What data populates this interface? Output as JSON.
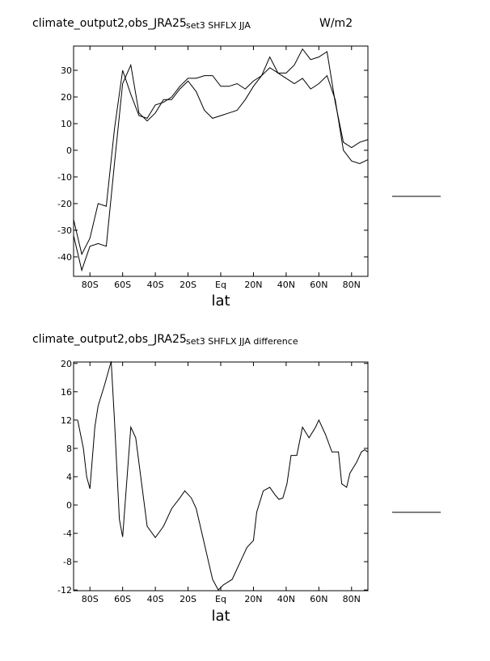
{
  "chart_data": [
    {
      "type": "line",
      "title": "climate_output2,obs_JRA25",
      "subtitle": "set3 SHFLX JJA",
      "units": "W/m2",
      "xlabel": "lat",
      "x": [
        -90,
        -85,
        -80,
        -75,
        -70,
        -65,
        -60,
        -55,
        -50,
        -45,
        -40,
        -35,
        -30,
        -25,
        -20,
        -15,
        -10,
        -5,
        0,
        5,
        10,
        15,
        20,
        25,
        30,
        35,
        40,
        45,
        50,
        55,
        60,
        65,
        70,
        75,
        80,
        85,
        90
      ],
      "series": [
        {
          "color": "#000000",
          "values": [
            -26,
            -39,
            -33,
            -20,
            -21,
            8,
            30,
            21,
            13,
            12,
            17,
            18,
            20,
            24,
            27,
            27,
            28,
            28,
            24,
            24,
            25,
            23,
            26,
            28,
            31,
            29,
            27,
            25,
            27,
            23,
            25,
            28,
            19,
            0,
            -4,
            -5,
            -3.5
          ]
        },
        {
          "color": "#000000",
          "values": [
            -32,
            -45,
            -36,
            -35,
            -36,
            -5,
            25,
            32,
            14,
            11,
            14,
            19,
            19,
            23,
            26,
            22,
            15,
            12,
            13,
            14,
            15,
            19,
            24,
            28,
            35,
            29,
            29,
            32,
            38,
            34,
            35,
            37,
            18,
            3,
            1,
            3,
            4
          ]
        }
      ],
      "xlim": [
        -90,
        90
      ],
      "ylim": [
        -47.3,
        39.1
      ],
      "xticks": [
        {
          "value": -80,
          "label": "80S"
        },
        {
          "value": -60,
          "label": "60S"
        },
        {
          "value": -40,
          "label": "40S"
        },
        {
          "value": -20,
          "label": "20S"
        },
        {
          "value": 0,
          "label": "Eq"
        },
        {
          "value": 20,
          "label": "20N"
        },
        {
          "value": 40,
          "label": "40N"
        },
        {
          "value": 60,
          "label": "60N"
        },
        {
          "value": 80,
          "label": "80N"
        }
      ],
      "yticks": [
        -40,
        -30,
        -20,
        -10,
        0,
        10,
        20,
        30
      ]
    },
    {
      "type": "line",
      "title": "climate_output2,obs_JRA25",
      "subtitle": "set3 SHFLX JJA difference",
      "xlabel": "lat",
      "x": [
        -87.5,
        -84,
        -82,
        -80,
        -77,
        -75,
        -71,
        -67,
        -65,
        -62,
        -60,
        -55,
        -52,
        -45,
        -40,
        -35,
        -30,
        -25,
        -22,
        -18,
        -15,
        -11,
        -5,
        -1.5,
        1.5,
        7,
        12,
        16,
        20,
        22,
        26,
        30,
        33,
        35.6,
        38,
        40.5,
        43,
        46.5,
        50,
        54,
        58,
        60,
        64,
        68,
        72,
        74,
        77,
        79,
        83,
        86,
        88,
        90
      ],
      "series": [
        {
          "color": "#000000",
          "values": [
            12,
            8,
            4,
            2.3,
            11,
            14,
            17,
            20.3,
            12,
            -2,
            -4.5,
            11,
            9.5,
            -3,
            -4.6,
            -3,
            -0.5,
            1,
            2,
            1,
            -0.5,
            -4.5,
            -10.5,
            -12,
            -11.3,
            -10.5,
            -8,
            -6,
            -5,
            -1,
            2,
            2.5,
            1.5,
            0.8,
            1,
            3,
            7,
            7,
            11,
            9.5,
            11,
            12,
            10,
            7.5,
            7.5,
            3,
            2.5,
            4.5,
            6,
            7.5,
            7.8,
            7.5
          ]
        }
      ],
      "xlim": [
        -90,
        90
      ],
      "ylim": [
        -12.1,
        20.2
      ],
      "xticks": [
        {
          "value": -80,
          "label": "80S"
        },
        {
          "value": -60,
          "label": "60S"
        },
        {
          "value": -40,
          "label": "40S"
        },
        {
          "value": -20,
          "label": "20S"
        },
        {
          "value": 0,
          "label": "Eq"
        },
        {
          "value": 20,
          "label": "20N"
        },
        {
          "value": 40,
          "label": "40N"
        },
        {
          "value": 60,
          "label": "60N"
        },
        {
          "value": 80,
          "label": "80N"
        }
      ],
      "yticks": [
        -12,
        -8,
        -4,
        0,
        4,
        8,
        12,
        16,
        20
      ]
    }
  ]
}
